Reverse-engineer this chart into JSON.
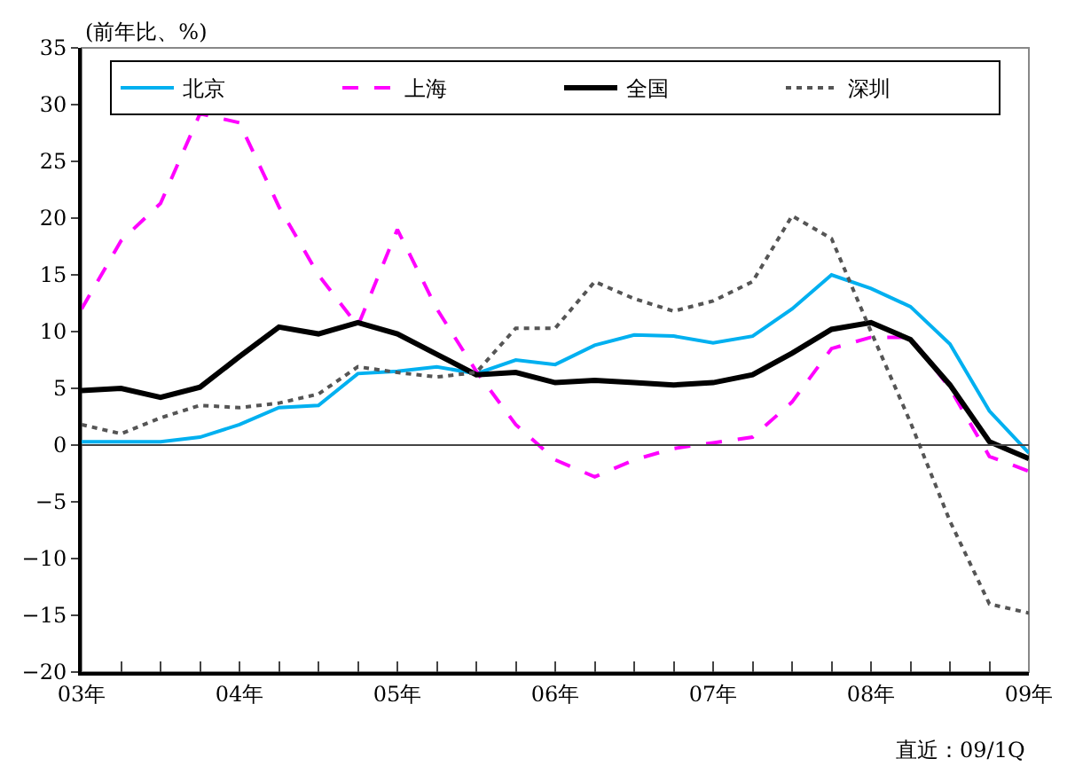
{
  "chart_data": {
    "type": "line",
    "ylabel": "(前年比、%)",
    "categories": [
      "03年",
      null,
      null,
      null,
      "04年",
      null,
      null,
      null,
      "05年",
      null,
      null,
      null,
      "06年",
      null,
      null,
      null,
      "07年",
      null,
      null,
      null,
      "08年",
      null,
      null,
      null,
      "09年"
    ],
    "series": [
      {
        "name": "北京",
        "color": "#00b0f0",
        "line_style": "solid",
        "values": [
          0.3,
          0.3,
          0.3,
          0.7,
          1.8,
          3.3,
          3.5,
          6.3,
          6.5,
          6.9,
          6.3,
          7.5,
          7.1,
          8.8,
          9.7,
          9.6,
          9.0,
          9.6,
          12.0,
          15.0,
          13.8,
          12.2,
          8.9,
          3.0,
          -0.7
        ]
      },
      {
        "name": "上海",
        "color": "#ff00ff",
        "line_style": "dashed",
        "values": [
          12,
          18,
          21.3,
          29.2,
          28.4,
          21,
          15,
          10.5,
          19,
          12,
          6.5,
          1.8,
          -1.3,
          -2.8,
          -1.3,
          -0.3,
          0.2,
          0.7,
          3.8,
          8.5,
          9.5,
          9.5,
          5,
          -1,
          -2.3
        ]
      },
      {
        "name": "全国",
        "color": "#000000",
        "line_style": "solid",
        "values": [
          4.8,
          5.0,
          4.2,
          5.1,
          7.8,
          10.4,
          9.8,
          10.8,
          9.8,
          8.0,
          6.2,
          6.4,
          5.5,
          5.7,
          5.5,
          5.3,
          5.5,
          6.2,
          8.1,
          10.2,
          10.8,
          9.3,
          5.3,
          0.3,
          -1.2
        ]
      },
      {
        "name": "深圳",
        "color": "#555555",
        "line_style": "dotted",
        "values": [
          1.8,
          1.0,
          2.4,
          3.5,
          3.3,
          3.7,
          4.5,
          6.9,
          6.4,
          6.0,
          6.4,
          10.3,
          10.3,
          14.4,
          12.9,
          11.8,
          12.7,
          14.4,
          20.2,
          18.2,
          10,
          2,
          -6.7,
          -14,
          -14.8
        ]
      }
    ],
    "ylim": [
      -20,
      35
    ],
    "yticks": [
      -20,
      -15,
      -10,
      -5,
      0,
      5,
      10,
      15,
      20,
      25,
      30,
      35
    ],
    "ref_lines": [
      {
        "axis": "y",
        "value": 0,
        "color": "#444444"
      }
    ],
    "grid": false,
    "legend": "top",
    "marker": "none",
    "annotations": [
      "直近：09/1Q"
    ]
  }
}
